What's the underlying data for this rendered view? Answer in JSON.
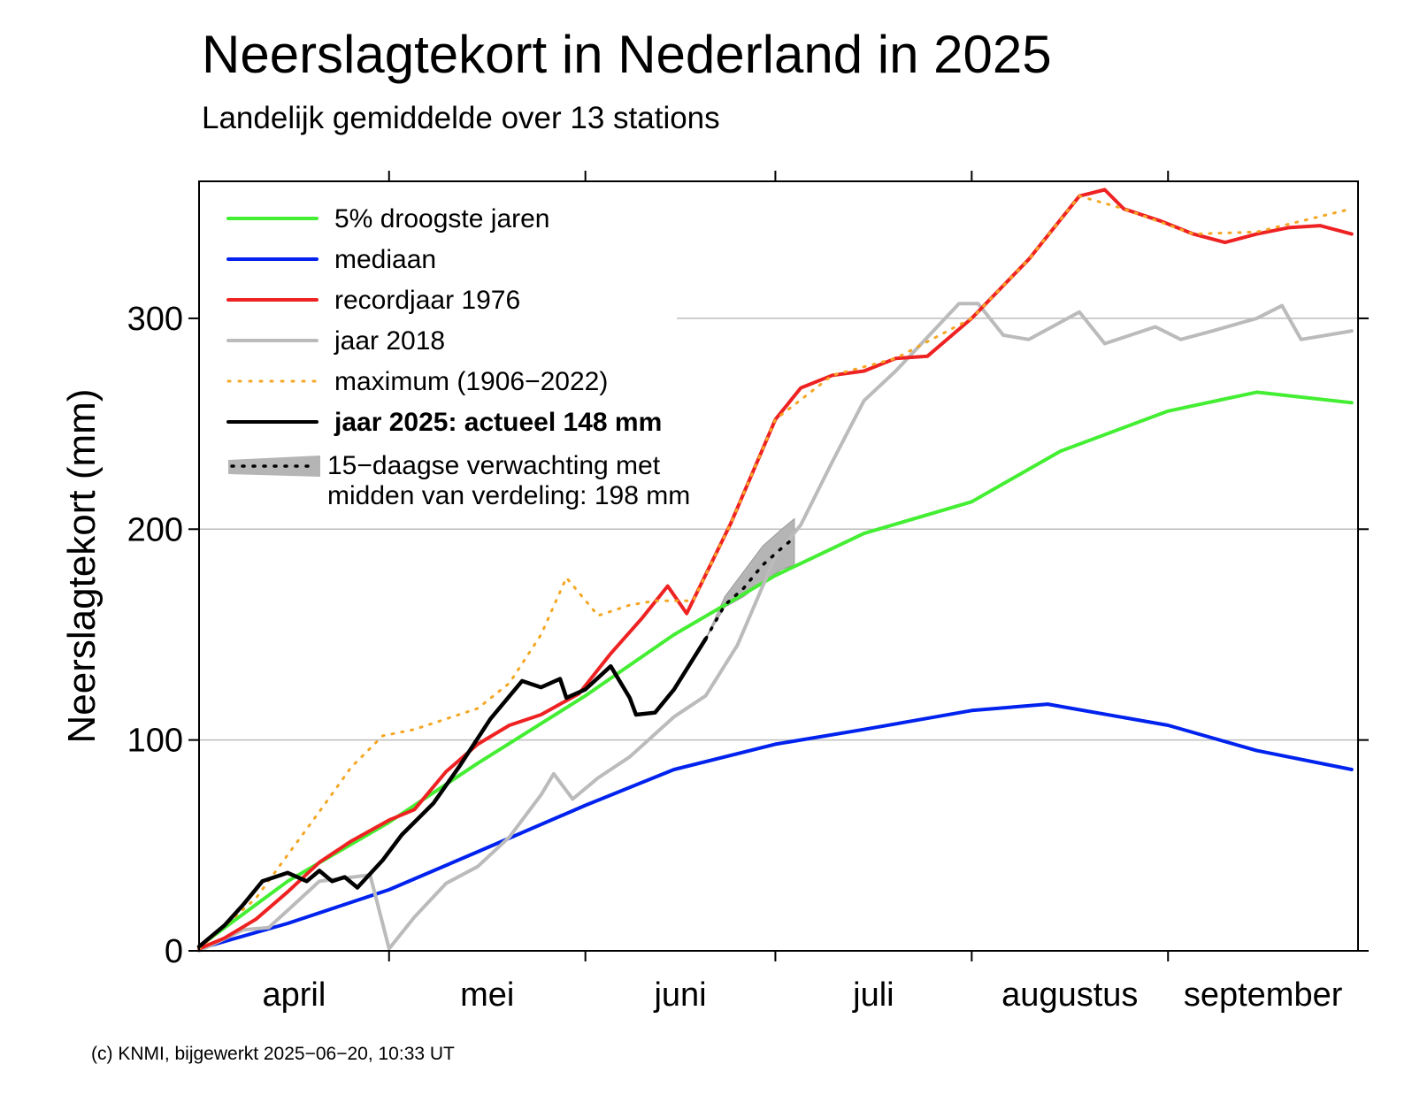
{
  "title": "Neerslagtekort in Nederland in 2025",
  "subtitle": "Landelijk gemiddelde over 13 stations",
  "credit": "(c) KNMI, bijgewerkt 2025−06−20, 10:33 UT",
  "chart_data": {
    "type": "line",
    "ylabel": "Neerslagtekort (mm)",
    "ylim": [
      0,
      365
    ],
    "yticks": [
      0,
      100,
      200,
      300
    ],
    "xlim": [
      "2025-04-01",
      "2025-09-30"
    ],
    "months": [
      {
        "label": "april",
        "start": "2025-04-01",
        "end": "2025-04-30"
      },
      {
        "label": "mei",
        "start": "2025-05-01",
        "end": "2025-05-31"
      },
      {
        "label": "juni",
        "start": "2025-06-01",
        "end": "2025-06-30"
      },
      {
        "label": "juli",
        "start": "2025-07-01",
        "end": "2025-07-31"
      },
      {
        "label": "augustus",
        "start": "2025-08-01",
        "end": "2025-08-31"
      },
      {
        "label": "september",
        "start": "2025-09-01",
        "end": "2025-09-30"
      }
    ],
    "grid": "horizontal",
    "legend": "top-left",
    "series": [
      {
        "name": "5% droogste jaren",
        "color": "#44ee33",
        "style": "solid",
        "points": [
          [
            "2025-04-01",
            2
          ],
          [
            "2025-04-15",
            33
          ],
          [
            "2025-05-01",
            61
          ],
          [
            "2025-05-15",
            89
          ],
          [
            "2025-06-01",
            121
          ],
          [
            "2025-06-15",
            150
          ],
          [
            "2025-07-01",
            178
          ],
          [
            "2025-07-15",
            198
          ],
          [
            "2025-08-01",
            213
          ],
          [
            "2025-08-15",
            237
          ],
          [
            "2025-09-01",
            256
          ],
          [
            "2025-09-15",
            265
          ],
          [
            "2025-09-30",
            260
          ]
        ]
      },
      {
        "name": "mediaan",
        "color": "#0022ee",
        "style": "solid",
        "points": [
          [
            "2025-04-01",
            1
          ],
          [
            "2025-04-15",
            13
          ],
          [
            "2025-05-01",
            29
          ],
          [
            "2025-05-15",
            47
          ],
          [
            "2025-06-01",
            69
          ],
          [
            "2025-06-15",
            86
          ],
          [
            "2025-07-01",
            98
          ],
          [
            "2025-07-15",
            105
          ],
          [
            "2025-08-01",
            114
          ],
          [
            "2025-08-13",
            117
          ],
          [
            "2025-09-01",
            107
          ],
          [
            "2025-09-15",
            95
          ],
          [
            "2025-09-30",
            86
          ]
        ]
      },
      {
        "name": "recordjaar 1976",
        "color": "#ee2222",
        "style": "solid",
        "points": [
          [
            "2025-04-01",
            1
          ],
          [
            "2025-04-05",
            6
          ],
          [
            "2025-04-10",
            15
          ],
          [
            "2025-04-15",
            28
          ],
          [
            "2025-04-20",
            42
          ],
          [
            "2025-04-25",
            52
          ],
          [
            "2025-05-01",
            62
          ],
          [
            "2025-05-05",
            67
          ],
          [
            "2025-05-10",
            85
          ],
          [
            "2025-05-15",
            98
          ],
          [
            "2025-05-20",
            107
          ],
          [
            "2025-05-25",
            112
          ],
          [
            "2025-05-31",
            122
          ],
          [
            "2025-06-05",
            141
          ],
          [
            "2025-06-10",
            158
          ],
          [
            "2025-06-14",
            173
          ],
          [
            "2025-06-17",
            160
          ],
          [
            "2025-06-24",
            203
          ],
          [
            "2025-07-01",
            252
          ],
          [
            "2025-07-05",
            267
          ],
          [
            "2025-07-10",
            273
          ],
          [
            "2025-07-15",
            275
          ],
          [
            "2025-07-20",
            281
          ],
          [
            "2025-07-25",
            282
          ],
          [
            "2025-08-01",
            300
          ],
          [
            "2025-08-10",
            328
          ],
          [
            "2025-08-18",
            358
          ],
          [
            "2025-08-22",
            361
          ],
          [
            "2025-08-25",
            352
          ],
          [
            "2025-08-31",
            346
          ],
          [
            "2025-09-05",
            340
          ],
          [
            "2025-09-10",
            336
          ],
          [
            "2025-09-15",
            340
          ],
          [
            "2025-09-20",
            343
          ],
          [
            "2025-09-25",
            344
          ],
          [
            "2025-09-30",
            340
          ]
        ]
      },
      {
        "name": "jaar 2018",
        "color": "#bbbbbb",
        "style": "solid",
        "points": [
          [
            "2025-04-01",
            0
          ],
          [
            "2025-04-08",
            10
          ],
          [
            "2025-04-12",
            11
          ],
          [
            "2025-04-16",
            22
          ],
          [
            "2025-04-20",
            33
          ],
          [
            "2025-04-28",
            36
          ],
          [
            "2025-05-01",
            1
          ],
          [
            "2025-05-05",
            16
          ],
          [
            "2025-05-10",
            32
          ],
          [
            "2025-05-15",
            40
          ],
          [
            "2025-05-20",
            54
          ],
          [
            "2025-05-25",
            74
          ],
          [
            "2025-05-27",
            84
          ],
          [
            "2025-05-30",
            72
          ],
          [
            "2025-06-03",
            82
          ],
          [
            "2025-06-08",
            92
          ],
          [
            "2025-06-15",
            111
          ],
          [
            "2025-06-20",
            121
          ],
          [
            "2025-06-25",
            145
          ],
          [
            "2025-07-01",
            187
          ],
          [
            "2025-07-05",
            202
          ],
          [
            "2025-07-10",
            232
          ],
          [
            "2025-07-15",
            261
          ],
          [
            "2025-07-20",
            275
          ],
          [
            "2025-07-25",
            291
          ],
          [
            "2025-07-30",
            307
          ],
          [
            "2025-08-02",
            307
          ],
          [
            "2025-08-06",
            292
          ],
          [
            "2025-08-10",
            290
          ],
          [
            "2025-08-18",
            303
          ],
          [
            "2025-08-22",
            288
          ],
          [
            "2025-08-30",
            296
          ],
          [
            "2025-09-03",
            290
          ],
          [
            "2025-09-08",
            294
          ],
          [
            "2025-09-15",
            300
          ],
          [
            "2025-09-19",
            306
          ],
          [
            "2025-09-22",
            290
          ],
          [
            "2025-09-30",
            294
          ]
        ]
      },
      {
        "name": "maximum (1906−2022)",
        "color": "#f5a623",
        "style": "dotted",
        "points": [
          [
            "2025-04-01",
            1
          ],
          [
            "2025-04-10",
            25
          ],
          [
            "2025-04-20",
            66
          ],
          [
            "2025-04-25",
            87
          ],
          [
            "2025-04-30",
            102
          ],
          [
            "2025-05-05",
            105
          ],
          [
            "2025-05-10",
            110
          ],
          [
            "2025-05-15",
            115
          ],
          [
            "2025-05-20",
            127
          ],
          [
            "2025-05-25",
            150
          ],
          [
            "2025-05-29",
            177
          ],
          [
            "2025-06-03",
            159
          ],
          [
            "2025-06-08",
            164
          ],
          [
            "2025-06-12",
            166
          ],
          [
            "2025-06-18",
            166
          ],
          [
            "2025-06-24",
            203
          ],
          [
            "2025-07-01",
            252
          ],
          [
            "2025-07-10",
            273
          ],
          [
            "2025-07-20",
            281
          ],
          [
            "2025-08-01",
            300
          ],
          [
            "2025-08-10",
            328
          ],
          [
            "2025-08-18",
            358
          ],
          [
            "2025-08-25",
            352
          ],
          [
            "2025-09-05",
            340
          ],
          [
            "2025-09-15",
            341
          ],
          [
            "2025-09-30",
            352
          ]
        ]
      },
      {
        "name": "jaar 2025: actueel 148 mm",
        "color": "#000000",
        "style": "solid",
        "bold": true,
        "points": [
          [
            "2025-04-01",
            2
          ],
          [
            "2025-04-05",
            12
          ],
          [
            "2025-04-08",
            22
          ],
          [
            "2025-04-11",
            33
          ],
          [
            "2025-04-15",
            37
          ],
          [
            "2025-04-18",
            33
          ],
          [
            "2025-04-20",
            38
          ],
          [
            "2025-04-22",
            33
          ],
          [
            "2025-04-24",
            35
          ],
          [
            "2025-04-26",
            30
          ],
          [
            "2025-04-30",
            43
          ],
          [
            "2025-05-03",
            55
          ],
          [
            "2025-05-08",
            70
          ],
          [
            "2025-05-12",
            87
          ],
          [
            "2025-05-17",
            110
          ],
          [
            "2025-05-22",
            128
          ],
          [
            "2025-05-25",
            125
          ],
          [
            "2025-05-28",
            129
          ],
          [
            "2025-05-29",
            120
          ],
          [
            "2025-06-01",
            124
          ],
          [
            "2025-06-05",
            135
          ],
          [
            "2025-06-08",
            120
          ],
          [
            "2025-06-09",
            112
          ],
          [
            "2025-06-12",
            113
          ],
          [
            "2025-06-15",
            124
          ],
          [
            "2025-06-20",
            148
          ]
        ]
      }
    ],
    "forecast": {
      "name": "15−daagse verwachting met",
      "name_line2": "midden van verdeling: 198 mm",
      "color": "#bbbbbb",
      "median": [
        [
          "2025-06-20",
          148
        ],
        [
          "2025-06-23",
          164
        ],
        [
          "2025-06-26",
          172
        ],
        [
          "2025-06-29",
          183
        ],
        [
          "2025-07-02",
          191
        ],
        [
          "2025-07-04",
          196
        ]
      ],
      "upper": [
        [
          "2025-06-20",
          148
        ],
        [
          "2025-06-23",
          168
        ],
        [
          "2025-06-26",
          180
        ],
        [
          "2025-06-29",
          192
        ],
        [
          "2025-07-02",
          200
        ],
        [
          "2025-07-04",
          205
        ]
      ],
      "lower": [
        [
          "2025-06-20",
          148
        ],
        [
          "2025-06-23",
          163
        ],
        [
          "2025-06-26",
          168
        ],
        [
          "2025-06-29",
          175
        ],
        [
          "2025-07-02",
          181
        ],
        [
          "2025-07-04",
          183
        ]
      ]
    }
  }
}
